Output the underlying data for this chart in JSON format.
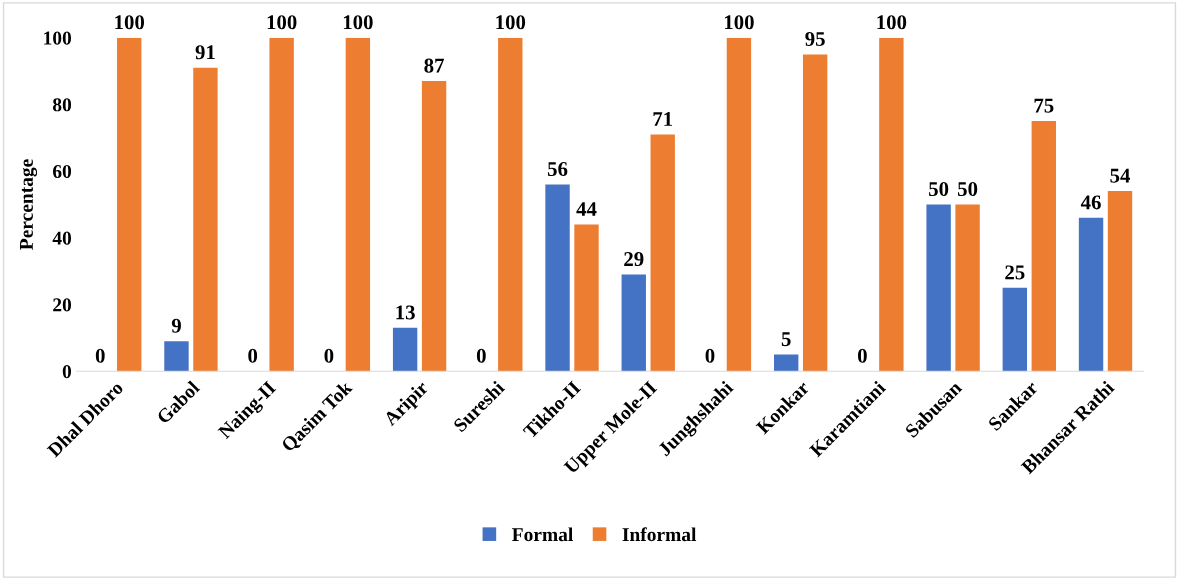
{
  "chart_data": {
    "type": "bar",
    "ylabel": "Percentage",
    "categories": [
      "Dhal Dhoro",
      "Gabol",
      "Naing-II",
      "Qasim Tok",
      "Aripir",
      "Sureshi",
      "Tikho-II",
      "Upper Mole-II",
      "Junghshahi",
      "Konkar",
      "Karamtiani",
      "Sabusan",
      "Sankar",
      "Bhansar Rathi"
    ],
    "series": [
      {
        "name": "Formal",
        "color": "#4472c4",
        "values": [
          0,
          9,
          0,
          0,
          13,
          0,
          56,
          29,
          0,
          5,
          0,
          50,
          25,
          46
        ]
      },
      {
        "name": "Informal",
        "color": "#ed7d31",
        "values": [
          100,
          91,
          100,
          100,
          87,
          100,
          44,
          71,
          100,
          95,
          100,
          50,
          75,
          54
        ]
      }
    ],
    "ylim": [
      0,
      100
    ],
    "yticks": [
      0,
      20,
      40,
      60,
      80,
      100
    ],
    "grid": false,
    "legend": "bottom",
    "data_labels": true
  }
}
